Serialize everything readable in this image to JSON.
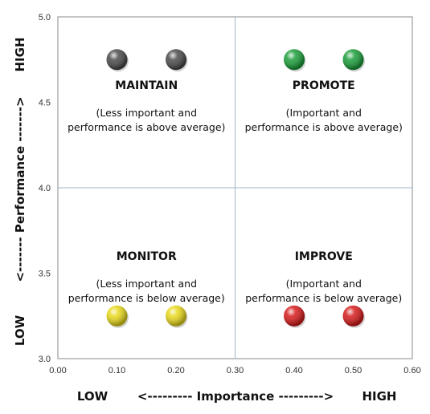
{
  "chart_data": {
    "type": "scatter",
    "title": "",
    "xlim": [
      0.0,
      0.6
    ],
    "ylim": [
      3.0,
      5.0
    ],
    "x_ticks": [
      "0.00",
      "0.10",
      "0.20",
      "0.30",
      "0.40",
      "0.50",
      "0.60"
    ],
    "y_ticks": [
      "3.0",
      "3.5",
      "4.0",
      "4.5",
      "5.0"
    ],
    "x_axis": {
      "low": "LOW",
      "label": "<--------- Importance --------->",
      "high": "HIGH"
    },
    "y_axis": {
      "low": "LOW",
      "label": "<------- Performance ------->",
      "high": "HIGH"
    },
    "dividers": {
      "x": 0.3,
      "y": 4.0
    },
    "grid": false,
    "points": [
      {
        "x": 0.1,
        "y": 4.75,
        "color": "#4a4a4a"
      },
      {
        "x": 0.2,
        "y": 4.75,
        "color": "#4a4a4a"
      },
      {
        "x": 0.4,
        "y": 4.75,
        "color": "#1a9e3a"
      },
      {
        "x": 0.5,
        "y": 4.75,
        "color": "#1a9e3a"
      },
      {
        "x": 0.1,
        "y": 3.25,
        "color": "#e8d81a"
      },
      {
        "x": 0.2,
        "y": 3.25,
        "color": "#e8d81a"
      },
      {
        "x": 0.4,
        "y": 3.25,
        "color": "#d61a1a"
      },
      {
        "x": 0.5,
        "y": 3.25,
        "color": "#d61a1a"
      }
    ],
    "quadrants": [
      {
        "key": "maintain",
        "title": "MAINTAIN",
        "line1": "(Less important and",
        "line2": "performance is above average)"
      },
      {
        "key": "promote",
        "title": "PROMOTE",
        "line1": "(Important and",
        "line2": "performance is above average)"
      },
      {
        "key": "monitor",
        "title": "MONITOR",
        "line1": "(Less important and",
        "line2": "performance is below average)"
      },
      {
        "key": "improve",
        "title": "IMPROVE",
        "line1": "(Important and",
        "line2": "performance is below average)"
      }
    ],
    "colors": {
      "divider": "#9fb6c8",
      "frame": "#888888"
    }
  }
}
